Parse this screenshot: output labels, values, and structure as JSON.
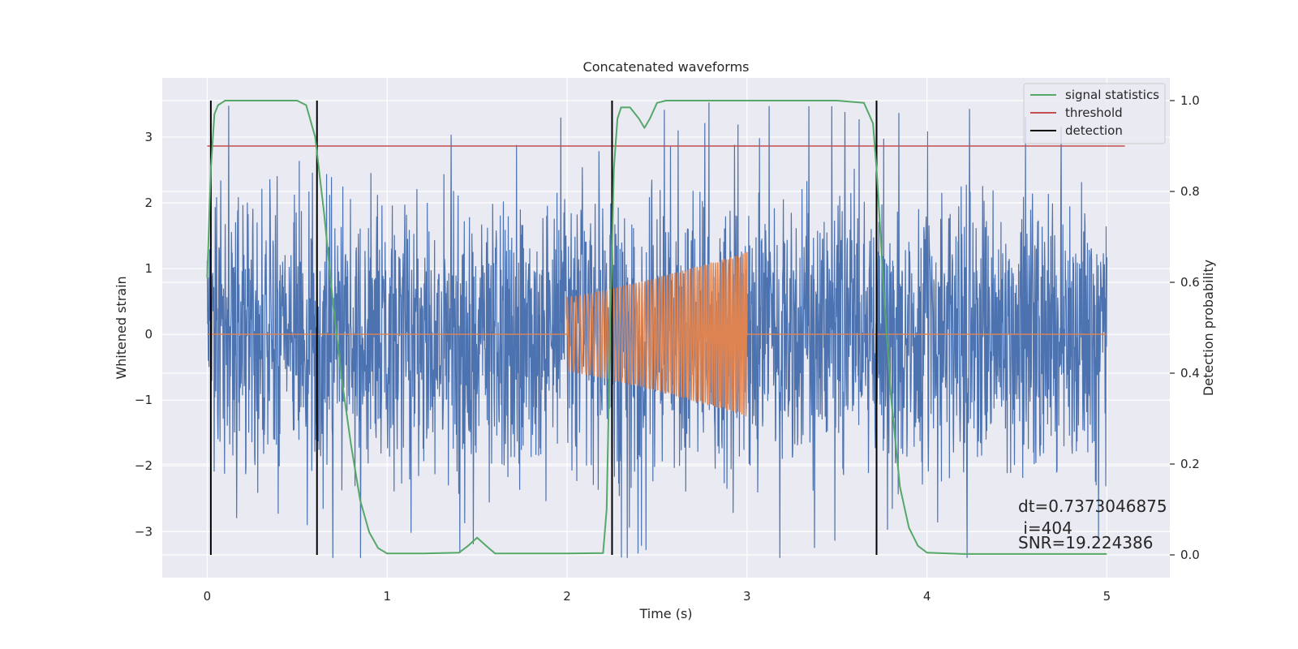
{
  "chart_data": {
    "type": "line",
    "title": "Concatenated waveforms",
    "xlabel": "Time (s)",
    "ylabel": "Whitened strain",
    "ylabel_right": "Detection probability",
    "xlim": [
      -0.25,
      5.35
    ],
    "ylim": [
      -3.7,
      3.9
    ],
    "ylim_right": [
      -0.05,
      1.05
    ],
    "x_ticks": [
      0,
      1,
      2,
      3,
      4,
      5
    ],
    "y_ticks": [
      -3,
      -2,
      -1,
      0,
      1,
      2,
      3
    ],
    "y_tick_labels": [
      "−3",
      "−2",
      "−1",
      "0",
      "1",
      "2",
      "3"
    ],
    "y_ticks_right": [
      0.0,
      0.2,
      0.4,
      0.6,
      0.8,
      1.0
    ],
    "y_tick_labels_right": [
      "0.0",
      "0.2",
      "0.4",
      "0.6",
      "0.8",
      "1.0"
    ],
    "grid": true,
    "legend_position": "top-right",
    "colors": {
      "background": "#eaeaf2",
      "grid": "#ffffff",
      "strain": "#4c72b0",
      "template": "#dd8452",
      "signal_statistics": "#55a868",
      "threshold": "#c44e52",
      "detection": "#000000"
    },
    "legend": [
      {
        "label": "signal statistics",
        "color": "#55a868"
      },
      {
        "label": "threshold",
        "color": "#c44e52"
      },
      {
        "label": "detection",
        "color": "#000000"
      }
    ],
    "strain": {
      "x_range": [
        0,
        5
      ],
      "noise_envelope": 2.6,
      "peak_max": 3.6,
      "peak_min": -3.4
    },
    "template": {
      "t_start": 2.0,
      "t_end": 3.0,
      "amp_start": 0.57,
      "amp_end": 1.25
    },
    "threshold": {
      "x_range": [
        0,
        5.1
      ],
      "value": 0.9
    },
    "signal_statistics": {
      "x": [
        0.0,
        0.02,
        0.04,
        0.06,
        0.1,
        0.2,
        0.5,
        0.55,
        0.6,
        0.65,
        0.7,
        0.75,
        0.8,
        0.85,
        0.9,
        0.95,
        1.0,
        1.2,
        1.4,
        1.45,
        1.5,
        1.55,
        1.6,
        2.0,
        2.2,
        2.22,
        2.24,
        2.26,
        2.28,
        2.3,
        2.35,
        2.4,
        2.43,
        2.46,
        2.5,
        2.55,
        2.6,
        3.0,
        3.5,
        3.65,
        3.7,
        3.72,
        3.74,
        3.76,
        3.8,
        3.85,
        3.9,
        3.95,
        4.0,
        4.2,
        5.0
      ],
      "y": [
        0.61,
        0.85,
        0.97,
        0.99,
        1.0,
        1.0,
        1.0,
        0.99,
        0.92,
        0.75,
        0.55,
        0.38,
        0.24,
        0.12,
        0.05,
        0.015,
        0.003,
        0.003,
        0.005,
        0.02,
        0.038,
        0.02,
        0.003,
        0.003,
        0.004,
        0.1,
        0.5,
        0.85,
        0.96,
        0.985,
        0.985,
        0.96,
        0.94,
        0.96,
        0.995,
        1.0,
        1.0,
        1.0,
        1.0,
        0.995,
        0.95,
        0.85,
        0.72,
        0.58,
        0.35,
        0.15,
        0.06,
        0.02,
        0.005,
        0.002,
        0.002
      ]
    },
    "detections": [
      0.02,
      0.61,
      2.25,
      3.72
    ],
    "annotations": [
      "dt=0.7373046875",
      " i=404",
      "SNR=19.224386"
    ]
  }
}
